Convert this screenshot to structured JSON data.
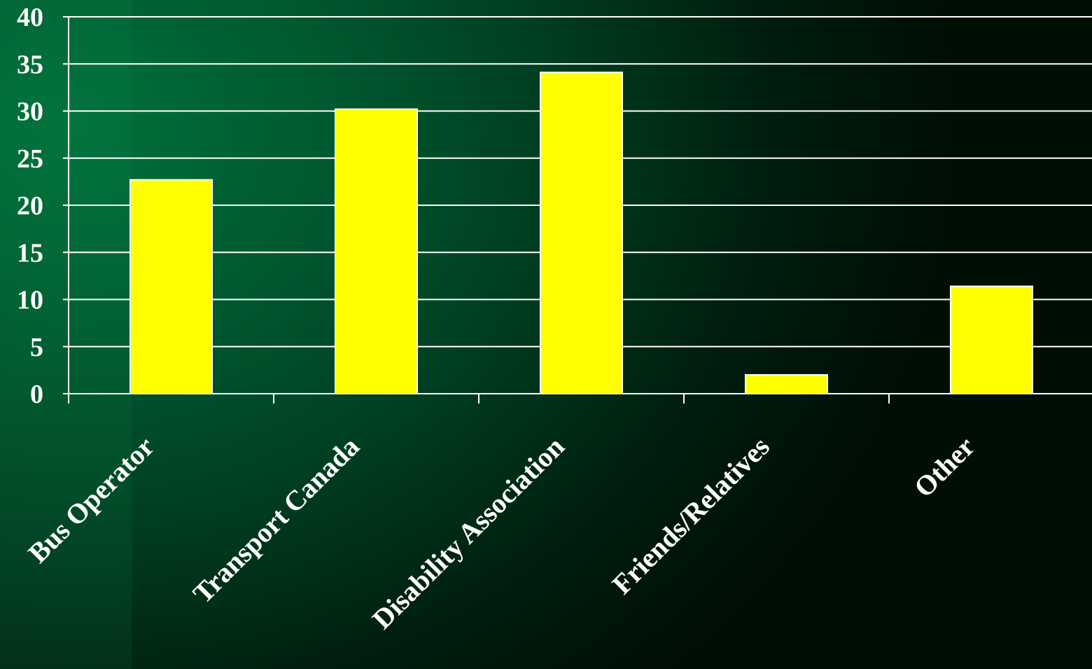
{
  "chart_data": {
    "type": "bar",
    "title": "",
    "xlabel": "",
    "ylabel": "",
    "categories": [
      "Bus Operator",
      "Transport Canada",
      "Disability Association",
      "Friends/Relatives",
      "Other"
    ],
    "values": [
      22.7,
      30.2,
      34.1,
      2.0,
      11.4
    ],
    "ylim": [
      0,
      40
    ],
    "yticks": [
      "0",
      "5",
      "10",
      "15",
      "20",
      "25",
      "30",
      "35",
      "40"
    ],
    "grid": true,
    "legend": "none",
    "colors": {
      "bar": "#ffff00",
      "bar_edge": "#ffffff",
      "grid": "#ffffff",
      "text": "#ffffff",
      "background": "#004a26"
    }
  }
}
